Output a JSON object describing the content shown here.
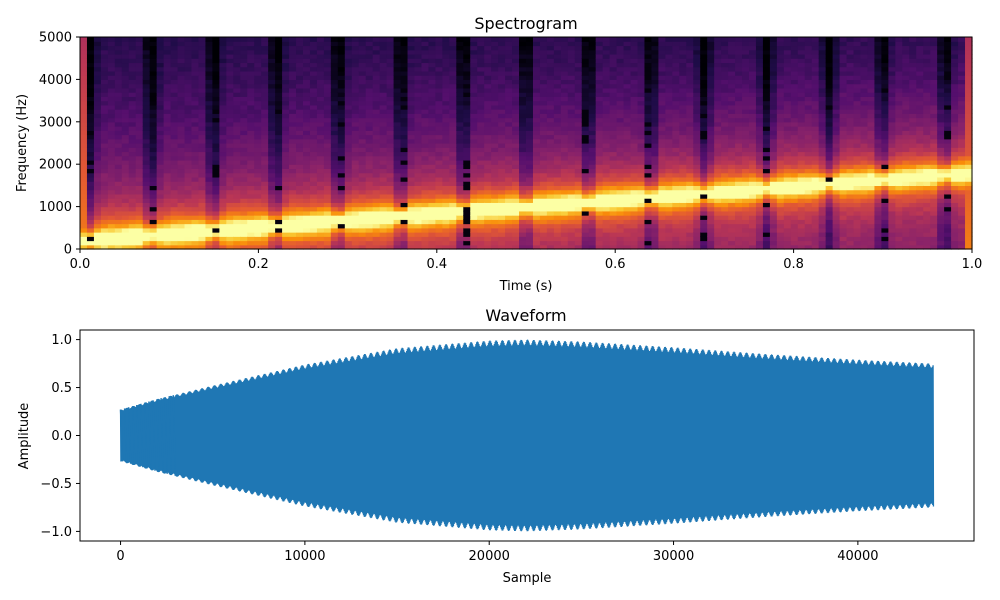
{
  "chart_data": [
    {
      "type": "heatmap",
      "title": "Spectrogram",
      "xlabel": "Time (s)",
      "ylabel": "Frequency (Hz)",
      "xlim": [
        0.0,
        1.0
      ],
      "ylim": [
        0,
        5000
      ],
      "x_ticks": [
        "0.0",
        "0.2",
        "0.4",
        "0.6",
        "0.8",
        "1.0"
      ],
      "y_ticks": [
        "0",
        "1000",
        "2000",
        "3000",
        "4000",
        "5000"
      ],
      "colormap": "inferno",
      "ridge": {
        "freq_start": 200,
        "freq_end": 1800
      },
      "dark_columns_t": [
        0.01,
        0.08,
        0.15,
        0.22,
        0.29,
        0.36,
        0.43,
        0.5,
        0.57,
        0.64,
        0.7,
        0.77,
        0.84,
        0.9,
        0.97
      ],
      "grid": false
    },
    {
      "type": "line",
      "title": "Waveform",
      "xlabel": "Sample",
      "ylabel": "Amplitude",
      "xlim": [
        -2200,
        46300
      ],
      "ylim": [
        -1.1,
        1.1
      ],
      "x_ticks": [
        "0",
        "10000",
        "20000",
        "30000",
        "40000"
      ],
      "y_ticks": [
        "−1.0",
        "−0.5",
        "0.0",
        "0.5",
        "1.0"
      ],
      "series": [
        {
          "color": "#1f77b4",
          "sample_count": 44100,
          "envelope_x": [
            0,
            2000,
            5000,
            10000,
            15000,
            20000,
            22000,
            25000,
            30000,
            35000,
            40000,
            44100
          ],
          "envelope_y": [
            0.27,
            0.38,
            0.52,
            0.74,
            0.91,
            0.99,
            1.0,
            0.98,
            0.92,
            0.85,
            0.79,
            0.75
          ]
        }
      ],
      "grid": false
    }
  ]
}
